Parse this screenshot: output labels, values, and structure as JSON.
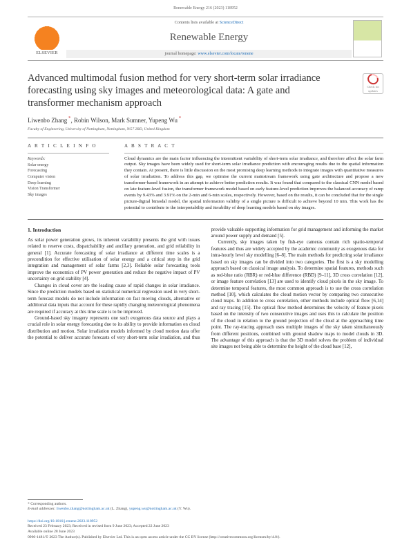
{
  "header": {
    "running": "Renewable Energy 216 (2023) 118952",
    "contents_prefix": "Contents lists available at ",
    "contents_link": "ScienceDirect",
    "journal": "Renewable Energy",
    "homepage_prefix": "journal homepage: ",
    "homepage_link": "www.elsevier.com/locate/renene",
    "publisher": "ELSEVIER"
  },
  "badge": {
    "line1": "Check for",
    "line2": "updates"
  },
  "title": "Advanced multimodal fusion method for very short-term solar irradiance forecasting using sky images and meteorological data: A gate and transformer mechanism approach",
  "authors_html": "Liwenbo Zhang *, Robin Wilson, Mark Sumner, Yupeng Wu *",
  "affiliation": "Faculty of Engineering, University of Nottingham, Nottingham, NG7 2RD, United Kingdom",
  "article_info": {
    "heading": "A R T I C L E   I N F O",
    "kw_label": "Keywords:",
    "keywords": [
      "Solar energy",
      "Forecasting",
      "Computer vision",
      "Deep learning",
      "Vision Transformer",
      "Sky images"
    ]
  },
  "abstract": {
    "heading": "A B S T R A C T",
    "text": "Cloud dynamics are the main factor influencing the intermittent variability of short-term solar irradiance, and therefore affect the solar farm output. Sky images have been widely used for short-term solar irradiance prediction with encouraging results due to the spatial information they contain. At present, there is little discussion on the most promising deep learning methods to integrate images with quantitative measures of solar irradiation. To address this gap, we optimise the current mainstream framework using gate architecture and propose a new transformer-based framework in an attempt to achieve better prediction results. It was found that compared to the classical CNN model based on late feature-level fusion, the transformer framework model based on early feature-level prediction improves the balanced accuracy of ramp events by 9.43% and 3.91% on the 2-min and 6-min scales, respectively. However, based on the results, it can be concluded that for the single picture-digital bimodal model, the spatial information validity of a single picture is difficult to achieve beyond 10 min. This work has the potential to contribute to the interpretability and iterability of deep learning models based on sky images."
  },
  "section1": {
    "heading": "1.  Introduction",
    "p1": "As solar power generation grows, its inherent variability presents the grid with issues related to reserve costs, dispatchability and ancillary generation, and grid reliability in general [1]. Accurate forecasting of solar irradiance at different time scales is a precondition for effective utilisation of solar energy and a critical step in the grid integration and management of solar farms [2,3]. Reliable solar forecasting tools improve the economics of PV power generation and reduce the negative impact of PV uncertainty on grid stability [4].",
    "p2": "Changes in cloud cover are the leading cause of rapid changes in solar irradiance. Since the prediction models based on statistical numerical regression used in very short-term forecast models do not include information on fast moving clouds, alternative or additional data inputs that account for these rapidly changing meteorological phenomena are required if accuracy at this time scale is to be improved.",
    "p3": "Ground-based sky imagery represents one such exogenous data source and plays a crucial role in solar energy forecasting due to its ability to provide information on cloud distribution and motion. Solar irradiation models informed by cloud motion data offer the potential to deliver accurate forecasts of very short-term solar irradiation, and thus provide valuable supporting information for grid management and informing the market around power supply and demand [5].",
    "p4": "Currently, sky images taken by fish-eye cameras contain rich spatio-temporal features and thus are widely accepted by the academic community as exogenous data for intra-hourly level sky modelling [6–8]. The main methods for predicting solar irradiance based on sky images can be divided into two categories. The first is a sky modelling approach based on classical image analysis. To determine spatial features, methods such as red-blue ratio (RBR) or red-blue difference (RBD) [9–11], 3D cross correlation [12], or image feature correlation [13] are used to identify cloud pixels in the sky image. To determine temporal features, the most common approach is to use the cross correlation method [10], which calculates the cloud motion vector by comparing two consecutive cloud maps. In addition to cross correlation, other methods include optical flow [6,14] and ray tracing [15]. The optical flow method determines the velocity of feature pixels based on the intensity of two consecutive images and uses this to calculate the position of the cloud in relation to the ground projection of the cloud at the approaching time point. The ray-tracing approach uses multiple images of the sky taken simultaneously from different positions, combined with ground shadow maps to model clouds in 3D. The advantage of this approach is that the 3D model solves the problem of individual site images not being able to determine the height of the cloud base [12],"
  },
  "footer": {
    "corr": "* Corresponding authors.",
    "email_label": "E-mail addresses: ",
    "email1": "liwenbo.zhang@nottingham.ac.uk",
    "email1_who": " (L. Zhang), ",
    "email2": "yupeng.wu@nottingham.ac.uk",
    "email2_who": " (Y. Wu).",
    "doi": "https://doi.org/10.1016/j.renene.2023.118952",
    "received": "Received 23 February 2023; Received in revised form 9 June 2023; Accepted 22 June 2023",
    "available": "Available online 28 June 2023",
    "cc": "0960-1481/© 2023 The Author(s). Published by Elsevier Ltd. This is an open access article under the CC BY license (http://creativecommons.org/licenses/by/4.0/)."
  }
}
